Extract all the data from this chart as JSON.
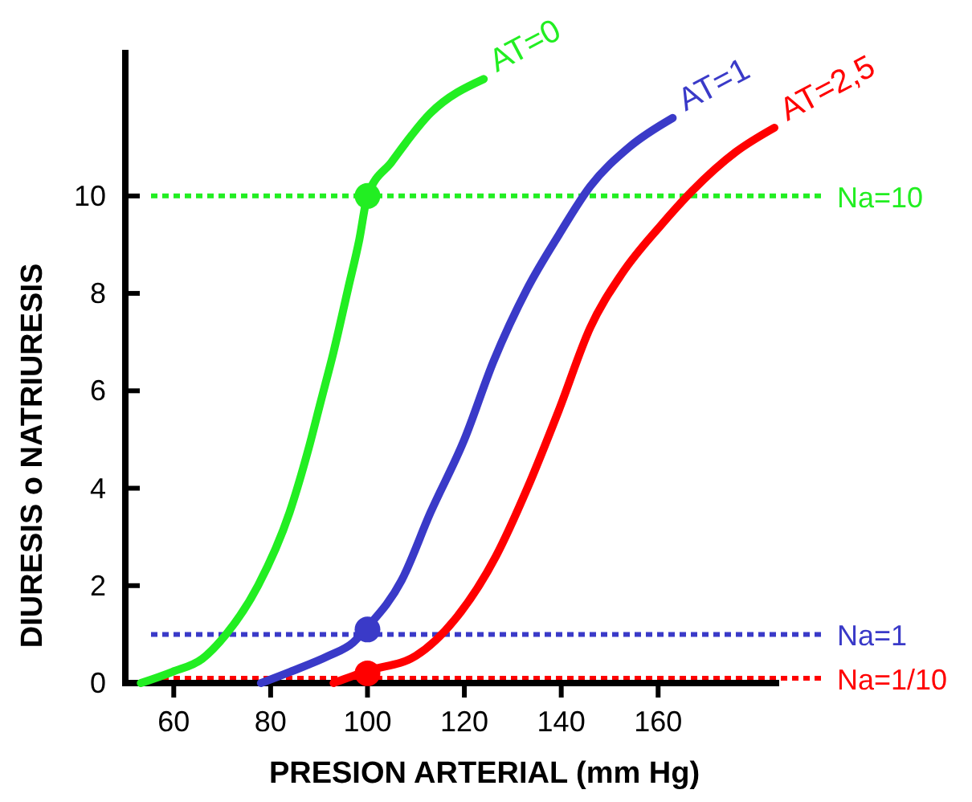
{
  "chart_data": {
    "type": "line",
    "xlabel": "PRESION ARTERIAL (mm Hg)",
    "ylabel": "DIURESIS o NATRIURESIS",
    "xlim": [
      50,
      185
    ],
    "xticks": [
      60,
      80,
      100,
      120,
      140,
      160
    ],
    "ylim": [
      0,
      13
    ],
    "yticks": [
      0,
      2,
      4,
      6,
      8,
      10
    ],
    "grid": false,
    "marker": "none",
    "line_style": "solid",
    "series": [
      {
        "name": "AT=0",
        "color": "#22ee22",
        "x": [
          53.2,
          59.7,
          65.9,
          70.8,
          77.4,
          83.9,
          87.8,
          90.4,
          93,
          96,
          98.3,
          100,
          105,
          113,
          124
        ],
        "values": [
          0,
          0.23,
          0.5,
          1.0,
          2.0,
          3.5,
          4.8,
          5.8,
          6.8,
          8.1,
          9.1,
          10,
          10.7,
          11.7,
          12.4
        ]
      },
      {
        "name": "AT=1",
        "color": "#3a3ac8",
        "x": [
          78,
          84,
          92,
          97,
          100,
          107,
          113,
          120,
          126,
          133,
          139.5,
          146,
          154,
          163
        ],
        "values": [
          0,
          0.23,
          0.56,
          0.83,
          1.15,
          2.1,
          3.5,
          5,
          6.6,
          8.1,
          9.2,
          10.2,
          11,
          11.6
        ]
      },
      {
        "name": "AT=2,5",
        "color": "#ff0000",
        "x": [
          93,
          100,
          110,
          118,
          126.5,
          133,
          139.5,
          146,
          152.5,
          160.6,
          167,
          176,
          184
        ],
        "values": [
          0,
          0.25,
          0.56,
          1.3,
          2.6,
          4,
          5.6,
          7.3,
          8.4,
          9.4,
          10.1,
          10.9,
          11.4
        ]
      },
      {
        "type": "scatter",
        "marker": "circle",
        "color": "#22ee22",
        "x": [
          100
        ],
        "values": [
          10
        ]
      },
      {
        "type": "scatter",
        "marker": "circle",
        "color": "#3a3ac8",
        "x": [
          100
        ],
        "values": [
          1.1
        ]
      },
      {
        "type": "scatter",
        "marker": "circle",
        "color": "#ff0000",
        "x": [
          100
        ],
        "values": [
          0.2
        ]
      }
    ],
    "ref_lines": [
      {
        "axis": "y",
        "value": 10,
        "label": "Na=10",
        "color": "#22ee22",
        "line_style": "dotted"
      },
      {
        "axis": "y",
        "value": 1,
        "label": "Na=1",
        "color": "#3a3ac8",
        "line_style": "dotted"
      },
      {
        "axis": "y",
        "value": 0.1,
        "label": "Na=1/10",
        "color": "#ff0000",
        "line_style": "dotted"
      }
    ]
  }
}
